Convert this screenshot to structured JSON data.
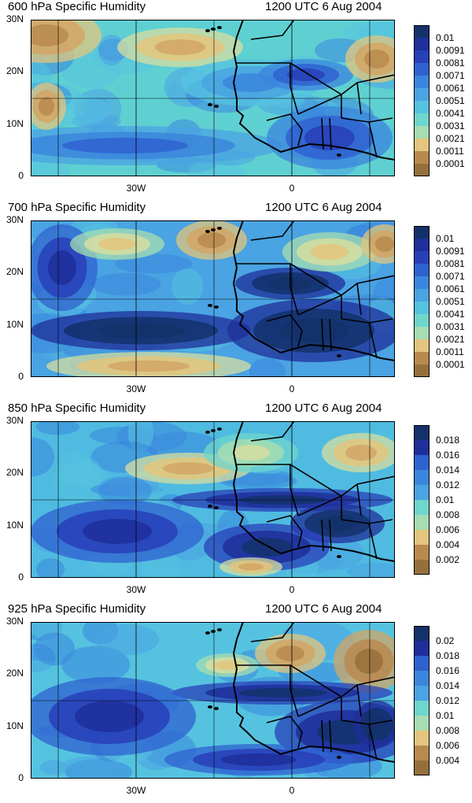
{
  "time_label": "1200 UTC 6 Aug 2004",
  "y_ticks": [
    "30N",
    "20N",
    "10N",
    "0"
  ],
  "x_ticks": [
    "30W",
    "0"
  ],
  "panels": [
    {
      "title": "600 hPa Specific Humidity",
      "levels": [
        "0.01",
        "0.0091",
        "0.0081",
        "0.0071",
        "0.0061",
        "0.0051",
        "0.0041",
        "0.0031",
        "0.0021",
        "0.0011",
        "0.0001"
      ]
    },
    {
      "title": "700 hPa Specific Humidity",
      "levels": [
        "0.01",
        "0.0091",
        "0.0081",
        "0.0071",
        "0.0061",
        "0.0051",
        "0.0041",
        "0.0031",
        "0.0021",
        "0.0011",
        "0.0001"
      ]
    },
    {
      "title": "850 hPa Specific Humidity",
      "levels": [
        "0.018",
        "0.016",
        "0.014",
        "0.012",
        "0.01",
        "0.008",
        "0.006",
        "0.004",
        "0.002"
      ]
    },
    {
      "title": "925 hPa Specific Humidity",
      "levels": [
        "0.02",
        "0.018",
        "0.016",
        "0.014",
        "0.012",
        "0.01",
        "0.008",
        "0.006",
        "0.004"
      ]
    }
  ],
  "colorbar_colors": [
    "#13316b",
    "#1f2f9a",
    "#2840b8",
    "#2f62d0",
    "#3b86dc",
    "#4aa3e2",
    "#55c3e0",
    "#6fd6cc",
    "#a6ddb2",
    "#d6dda0",
    "#e3c57d",
    "#d2a665",
    "#b88a4f",
    "#96703c"
  ]
}
